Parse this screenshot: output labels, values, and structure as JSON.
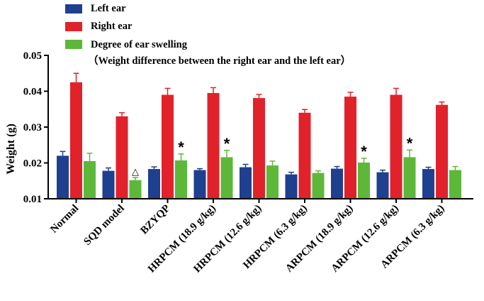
{
  "chart_data": {
    "type": "bar",
    "ylabel": "Weight (g)",
    "ylim": [
      0.01,
      0.05
    ],
    "yticks": [
      "0.01",
      "0.02",
      "0.03",
      "0.04",
      "0.05"
    ],
    "categories": [
      "Normal",
      "SQD model",
      "BZYQP",
      "HRPCM (18.9 g/kg)",
      "HRPCM (12.6 g/kg)",
      "HRPCM (6.3 g/kg)",
      "ARPCM (18.9 g/kg)",
      "ARPCM (12.6 g/kg)",
      "ARPCM (6.3 g/kg)"
    ],
    "legend": {
      "position": "top-left",
      "entries": [
        "Left ear",
        "Right ear",
        "Degree of ear swelling",
        "（Weight difference between the right ear and the left ear）"
      ]
    },
    "series": [
      {
        "name": "Left ear",
        "color": "#1f3f8f",
        "values": [
          0.022,
          0.0178,
          0.0183,
          0.018,
          0.0188,
          0.0168,
          0.0184,
          0.0174,
          0.0183
        ],
        "errors": [
          0.0012,
          0.0008,
          0.0006,
          0.0004,
          0.0008,
          0.0006,
          0.0006,
          0.0006,
          0.0005
        ]
      },
      {
        "name": "Right ear",
        "color": "#e1222a",
        "values": [
          0.0425,
          0.033,
          0.039,
          0.0395,
          0.0381,
          0.034,
          0.0385,
          0.039,
          0.0362
        ],
        "errors": [
          0.0025,
          0.001,
          0.0018,
          0.0015,
          0.001,
          0.0009,
          0.0012,
          0.0018,
          0.0008
        ]
      },
      {
        "name": "Degree of ear swelling",
        "color": "#5db83a",
        "values": [
          0.0205,
          0.0152,
          0.0207,
          0.0216,
          0.0193,
          0.0172,
          0.0201,
          0.0216,
          0.018
        ],
        "errors": [
          0.0022,
          0.0007,
          0.0018,
          0.0019,
          0.0012,
          0.0006,
          0.0012,
          0.002,
          0.001
        ]
      }
    ],
    "annotations": [
      {
        "category": "SQD model",
        "series": "Degree of ear swelling",
        "text": "△"
      },
      {
        "category": "BZYQP",
        "series": "Degree of ear swelling",
        "text": "*"
      },
      {
        "category": "HRPCM (18.9 g/kg)",
        "series": "Degree of ear swelling",
        "text": "*"
      },
      {
        "category": "ARPCM (18.9 g/kg)",
        "series": "Degree of ear swelling",
        "text": "*"
      },
      {
        "category": "ARPCM (12.6 g/kg)",
        "series": "Degree of ear swelling",
        "text": "*"
      }
    ]
  }
}
